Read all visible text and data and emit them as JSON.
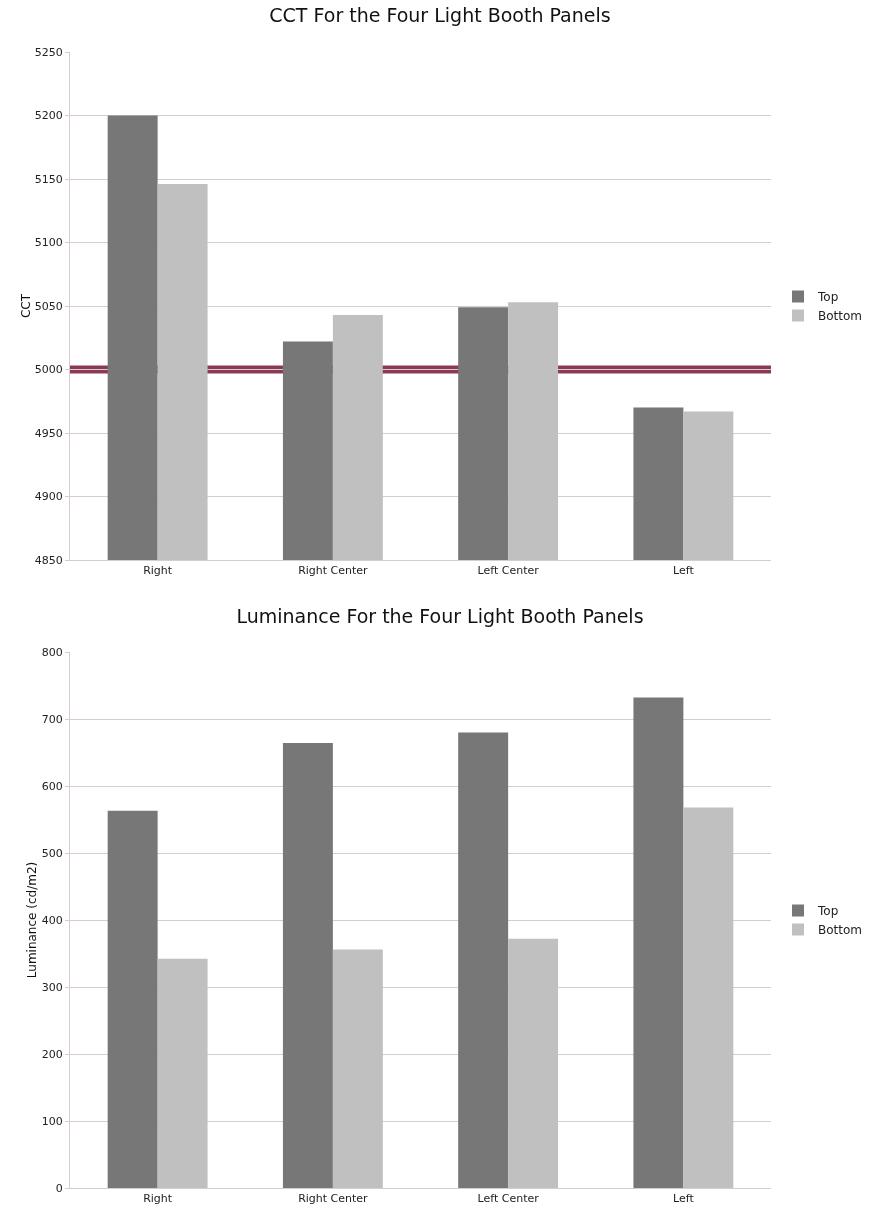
{
  "chart_data": [
    {
      "type": "bar",
      "title": "CCT For the Four Light Booth Panels",
      "ylabel": "CCT",
      "categories": [
        "Right",
        "Right Center",
        "Left Center",
        "Left"
      ],
      "series": [
        {
          "name": "Top",
          "color": "#777777",
          "values": [
            5200,
            5022,
            5049,
            4970
          ]
        },
        {
          "name": "Bottom",
          "color": "#c0c0c0",
          "values": [
            5146,
            5043,
            5053,
            4967
          ]
        }
      ],
      "ylim": [
        4850,
        5250
      ],
      "yticks": [
        4850,
        4900,
        4950,
        5000,
        5050,
        5100,
        5150,
        5200,
        5250
      ],
      "grid": "y",
      "legend": "right",
      "ref_lines": [
        {
          "axis": "y",
          "value": 5000,
          "color": "#8b3a55"
        }
      ]
    },
    {
      "type": "bar",
      "title": "Luminance For the Four Light Booth Panels",
      "ylabel": "Luminance (cd/m2)",
      "categories": [
        "Right",
        "Right Center",
        "Left Center",
        "Left"
      ],
      "series": [
        {
          "name": "Top",
          "color": "#777777",
          "values": [
            563,
            664,
            680,
            732
          ]
        },
        {
          "name": "Bottom",
          "color": "#c0c0c0",
          "values": [
            342,
            356,
            372,
            568
          ]
        }
      ],
      "ylim": [
        0,
        800
      ],
      "yticks": [
        0,
        100,
        200,
        300,
        400,
        500,
        600,
        700,
        800
      ],
      "grid": "y",
      "legend": "right"
    }
  ]
}
